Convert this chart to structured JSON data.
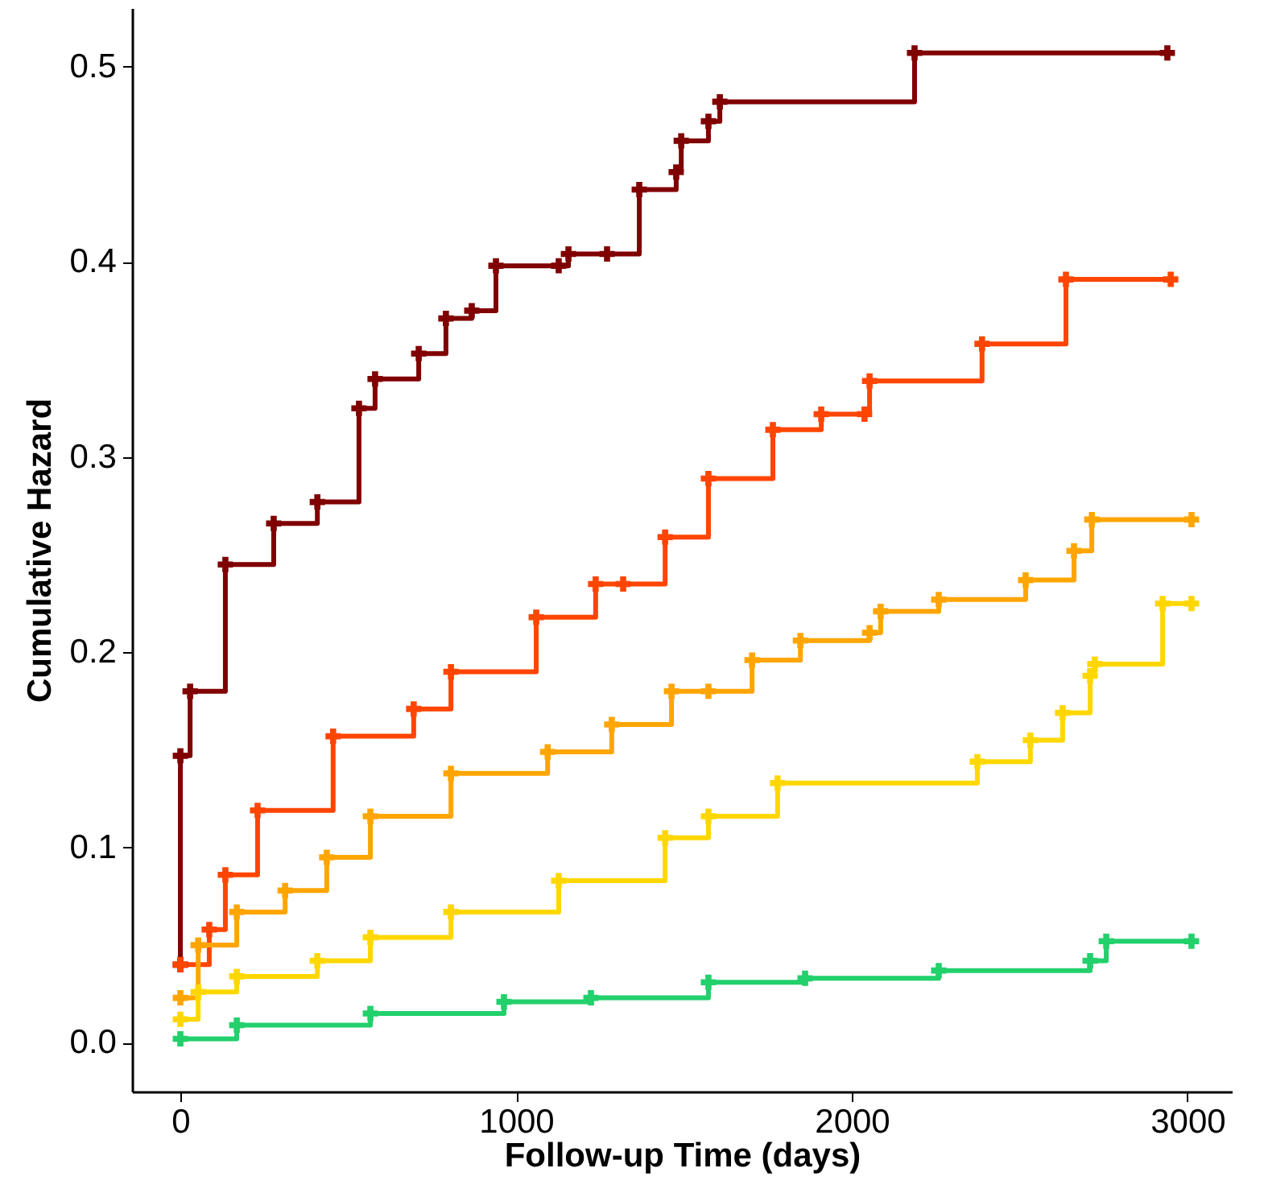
{
  "chart_data": {
    "type": "step",
    "xlabel": "Follow-up Time (days)",
    "ylabel": "Cumulative Hazard",
    "xlim": [
      -144,
      3132
    ],
    "xticks": [
      0,
      1000,
      2000,
      3000
    ],
    "ylim": [
      -0.025,
      0.53
    ],
    "yticks": [
      {
        "value": 0,
        "label": "0.0"
      },
      {
        "value": 0.1,
        "label": "0.1"
      },
      {
        "value": 0.2,
        "label": "0.2"
      },
      {
        "value": 0.3,
        "label": "0.3"
      },
      {
        "value": 0.4,
        "label": "0.4"
      },
      {
        "value": 0.5,
        "label": "0.5"
      }
    ],
    "grid": false,
    "marker": "cross",
    "line_style": "solid",
    "series": [
      {
        "color": "#800000",
        "x": [
          0,
          0,
          29,
          134,
          278,
          408,
          532,
          580,
          710,
          791,
          868,
          940,
          1127,
          1156,
          1271,
          1367,
          1477,
          1492,
          1573,
          1607,
          2187,
          2940
        ],
        "values": [
          0.04,
          0.147,
          0.18,
          0.245,
          0.266,
          0.277,
          0.325,
          0.34,
          0.353,
          0.371,
          0.375,
          0.398,
          0.398,
          0.404,
          0.404,
          0.437,
          0.446,
          0.462,
          0.472,
          0.482,
          0.507,
          0.507
        ]
      },
      {
        "color": "#ff4500",
        "x": [
          0,
          86,
          134,
          230,
          455,
          695,
          806,
          1060,
          1237,
          1319,
          1444,
          1573,
          1765,
          1909,
          2038,
          2053,
          2388,
          2638,
          2950
        ],
        "values": [
          0.04,
          0.058,
          0.086,
          0.119,
          0.157,
          0.171,
          0.19,
          0.218,
          0.235,
          0.235,
          0.259,
          0.289,
          0.314,
          0.322,
          0.322,
          0.339,
          0.358,
          0.391,
          0.391
        ]
      },
      {
        "color": "#ffa500",
        "x": [
          0,
          53,
          168,
          312,
          436,
          566,
          806,
          1094,
          1285,
          1463,
          1573,
          1703,
          1847,
          2053,
          2086,
          2259,
          2518,
          2662,
          2715,
          3012
        ],
        "values": [
          0.023,
          0.05,
          0.067,
          0.078,
          0.095,
          0.116,
          0.138,
          0.149,
          0.163,
          0.18,
          0.18,
          0.196,
          0.206,
          0.21,
          0.221,
          0.227,
          0.237,
          0.252,
          0.268,
          0.268
        ]
      },
      {
        "color": "#ffd700",
        "x": [
          0,
          53,
          168,
          408,
          566,
          806,
          1127,
          1444,
          1573,
          1779,
          2374,
          2532,
          2628,
          2710,
          2724,
          2926,
          3012
        ],
        "values": [
          0.012,
          0.026,
          0.034,
          0.042,
          0.054,
          0.067,
          0.083,
          0.105,
          0.116,
          0.133,
          0.144,
          0.155,
          0.169,
          0.188,
          0.194,
          0.225,
          0.225
        ]
      },
      {
        "color": "#22d06c",
        "x": [
          0,
          168,
          566,
          964,
          1223,
          1573,
          1861,
          2259,
          2710,
          2758,
          3012
        ],
        "values": [
          0.002,
          0.009,
          0.015,
          0.021,
          0.023,
          0.031,
          0.033,
          0.037,
          0.042,
          0.052,
          0.052
        ]
      }
    ]
  }
}
